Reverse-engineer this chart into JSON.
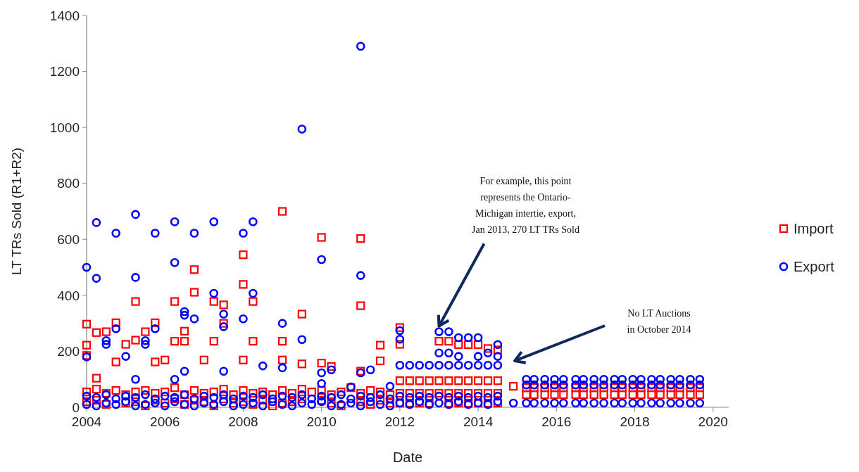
{
  "chart_data": {
    "type": "scatter",
    "xlabel": "Date",
    "ylabel": "LT TRs Sold (R1+R2)",
    "xlim": [
      2004,
      2020.4
    ],
    "xticks": [
      2004,
      2006,
      2008,
      2010,
      2012,
      2014,
      2016,
      2018,
      2020
    ],
    "ylim": [
      0,
      1400
    ],
    "yticks": [
      0,
      200,
      400,
      600,
      800,
      1000,
      1200,
      1400
    ],
    "legend": "right",
    "grid": false,
    "annotations": [
      {
        "text": "For example, this point represents the Ontario-Michigan intertie, export, Jan 2013, 270 LT TRs Sold",
        "x": 2013,
        "y": 270
      },
      "No LT Auctions in October 2014"
    ],
    "series": [
      {
        "name": "Import",
        "color": "#ff0000",
        "marker": "square",
        "x": [
          2004,
          2004,
          2004,
          2004,
          2004,
          2004.25,
          2004.25,
          2004.25,
          2004.25,
          2004.5,
          2004.5,
          2004.5,
          2004.75,
          2004.75,
          2004.75,
          2005,
          2005,
          2005,
          2005.25,
          2005.25,
          2005.25,
          2005.25,
          2005.5,
          2005.5,
          2005.5,
          2005.75,
          2005.75,
          2005.75,
          2005.75,
          2006,
          2006,
          2006,
          2006.25,
          2006.25,
          2006.25,
          2006.25,
          2006.5,
          2006.5,
          2006.5,
          2006.5,
          2006.75,
          2006.75,
          2006.75,
          2006.75,
          2007,
          2007,
          2007,
          2007.25,
          2007.25,
          2007.25,
          2007.25,
          2007.5,
          2007.5,
          2007.5,
          2007.5,
          2007.75,
          2007.75,
          2008,
          2008,
          2008,
          2008,
          2008,
          2008.25,
          2008.25,
          2008.25,
          2008.25,
          2008.5,
          2008.5,
          2008.75,
          2008.75,
          2009,
          2009,
          2009,
          2009,
          2009,
          2009.25,
          2009.25,
          2009.5,
          2009.5,
          2009.5,
          2009.5,
          2009.75,
          2010,
          2010,
          2010,
          2010,
          2010.25,
          2010.25,
          2010.25,
          2010.5,
          2010.5,
          2010.75,
          2011,
          2011,
          2011,
          2011,
          2011,
          2011.25,
          2011.25,
          2011.5,
          2011.5,
          2011.5,
          2011.5,
          2011.75,
          2011.75,
          2012,
          2012,
          2012,
          2012,
          2012,
          2012.25,
          2012.25,
          2012.25,
          2012.5,
          2012.5,
          2012.5,
          2012.75,
          2012.75,
          2012.75,
          2013,
          2013,
          2013,
          2013.25,
          2013.25,
          2013.25,
          2013.25,
          2013.5,
          2013.5,
          2013.5,
          2013.5,
          2013.75,
          2013.75,
          2013.75,
          2013.75,
          2014,
          2014,
          2014,
          2014,
          2014.25,
          2014.25,
          2014.25,
          2014.25,
          2014.5,
          2014.5,
          2014.5,
          2014.5,
          2014.9,
          2015.23,
          2015.23,
          2015.43,
          2015.43,
          2015.7,
          2015.7,
          2015.95,
          2015.95,
          2016.18,
          2016.18,
          2016.49,
          2016.49,
          2016.69,
          2016.69,
          2016.96,
          2016.96,
          2017.21,
          2017.21,
          2017.48,
          2017.48,
          2017.68,
          2017.68,
          2017.95,
          2017.95,
          2018.16,
          2018.16,
          2018.43,
          2018.43,
          2018.65,
          2018.65,
          2018.92,
          2018.92,
          2019.15,
          2019.15,
          2019.42,
          2019.42,
          2019.66,
          2019.66
        ],
        "values": [
          297,
          222,
          185,
          55,
          20,
          267,
          104,
          65,
          25,
          270,
          50,
          10,
          302,
          162,
          60,
          225,
          45,
          15,
          378,
          240,
          55,
          20,
          270,
          60,
          5,
          302,
          162,
          50,
          25,
          169,
          55,
          15,
          378,
          236,
          70,
          30,
          272,
          236,
          45,
          10,
          492,
          411,
          60,
          25,
          169,
          50,
          20,
          378,
          236,
          55,
          5,
          366,
          300,
          65,
          30,
          45,
          15,
          545,
          439,
          169,
          60,
          20,
          378,
          236,
          50,
          10,
          55,
          25,
          45,
          5,
          700,
          236,
          169,
          60,
          15,
          50,
          20,
          333,
          155,
          65,
          30,
          55,
          607,
          158,
          60,
          25,
          146,
          45,
          15,
          55,
          5,
          70,
          603,
          363,
          129,
          50,
          20,
          60,
          10,
          222,
          166,
          55,
          25,
          45,
          15,
          285,
          225,
          95,
          50,
          15,
          95,
          50,
          15,
          95,
          50,
          15,
          95,
          50,
          15,
          236,
          95,
          50,
          236,
          95,
          50,
          15,
          224,
          95,
          50,
          15,
          224,
          95,
          50,
          15,
          224,
          95,
          50,
          15,
          210,
          95,
          50,
          15,
          205,
          95,
          50,
          15,
          75,
          70,
          45,
          70,
          45,
          70,
          45,
          70,
          45,
          70,
          45,
          70,
          45,
          70,
          45,
          70,
          45,
          70,
          45,
          70,
          45,
          70,
          45,
          70,
          45,
          70,
          45,
          70,
          45,
          70,
          45,
          70,
          45,
          70,
          45,
          70,
          45,
          70,
          45
        ]
      },
      {
        "name": "Export",
        "color": "#0000ff",
        "marker": "circle",
        "x": [
          2004,
          2004,
          2004,
          2004,
          2004.25,
          2004.25,
          2004.25,
          2004.25,
          2004.5,
          2004.5,
          2004.5,
          2004.5,
          2004.75,
          2004.75,
          2004.75,
          2004.75,
          2005,
          2005,
          2005,
          2005.25,
          2005.25,
          2005.25,
          2005.25,
          2005.25,
          2005.5,
          2005.5,
          2005.5,
          2005.5,
          2005.75,
          2005.75,
          2005.75,
          2005.75,
          2006,
          2006,
          2006.25,
          2006.25,
          2006.25,
          2006.25,
          2006.25,
          2006.5,
          2006.5,
          2006.5,
          2006.5,
          2006.5,
          2006.75,
          2006.75,
          2006.75,
          2006.75,
          2007,
          2007,
          2007.25,
          2007.25,
          2007.25,
          2007.25,
          2007.5,
          2007.5,
          2007.5,
          2007.5,
          2007.5,
          2007.75,
          2007.75,
          2008,
          2008,
          2008,
          2008,
          2008.25,
          2008.25,
          2008.25,
          2008.25,
          2008.5,
          2008.5,
          2008.5,
          2008.75,
          2008.75,
          2009,
          2009,
          2009,
          2009,
          2009.25,
          2009.25,
          2009.5,
          2009.5,
          2009.5,
          2009.5,
          2009.75,
          2009.75,
          2010,
          2010,
          2010,
          2010,
          2010,
          2010.25,
          2010.25,
          2010.25,
          2010.5,
          2010.5,
          2010.75,
          2010.75,
          2010.75,
          2011,
          2011,
          2011,
          2011,
          2011,
          2011.25,
          2011.25,
          2011.25,
          2011.5,
          2011.5,
          2011.75,
          2011.75,
          2011.75,
          2012,
          2012,
          2012,
          2012,
          2012,
          2012.25,
          2012.25,
          2012.25,
          2012.5,
          2012.5,
          2012.5,
          2012.75,
          2012.75,
          2012.75,
          2013,
          2013,
          2013,
          2013,
          2013,
          2013.25,
          2013.25,
          2013.25,
          2013.25,
          2013.25,
          2013.5,
          2013.5,
          2013.5,
          2013.5,
          2013.5,
          2013.75,
          2013.75,
          2013.75,
          2013.75,
          2014,
          2014,
          2014,
          2014,
          2014,
          2014.25,
          2014.25,
          2014.25,
          2014.25,
          2014.5,
          2014.5,
          2014.5,
          2014.5,
          2014.5,
          2014.9,
          2015.23,
          2015.23,
          2015.23,
          2015.43,
          2015.43,
          2015.43,
          2015.7,
          2015.7,
          2015.7,
          2015.95,
          2015.95,
          2015.95,
          2016.18,
          2016.18,
          2016.18,
          2016.49,
          2016.49,
          2016.49,
          2016.69,
          2016.69,
          2016.69,
          2016.96,
          2016.96,
          2016.96,
          2017.21,
          2017.21,
          2017.21,
          2017.48,
          2017.48,
          2017.48,
          2017.68,
          2017.68,
          2017.68,
          2017.95,
          2017.95,
          2017.95,
          2018.16,
          2018.16,
          2018.16,
          2018.43,
          2018.43,
          2018.43,
          2018.65,
          2018.65,
          2018.65,
          2018.92,
          2018.92,
          2018.92,
          2019.15,
          2019.15,
          2019.15,
          2019.42,
          2019.42,
          2019.42,
          2019.66,
          2019.66,
          2019.66
        ],
        "values": [
          500,
          180,
          40,
          10,
          660,
          461,
          35,
          5,
          238,
          225,
          45,
          15,
          622,
          281,
          30,
          10,
          182,
          40,
          20,
          689,
          464,
          100,
          35,
          5,
          238,
          225,
          45,
          10,
          622,
          281,
          30,
          15,
          40,
          5,
          663,
          517,
          100,
          35,
          20,
          342,
          329,
          129,
          45,
          10,
          622,
          316,
          30,
          5,
          40,
          15,
          663,
          407,
          35,
          10,
          333,
          288,
          129,
          45,
          20,
          30,
          5,
          622,
          316,
          40,
          10,
          663,
          407,
          35,
          15,
          148,
          45,
          5,
          30,
          20,
          300,
          141,
          40,
          10,
          35,
          5,
          994,
          242,
          45,
          15,
          30,
          10,
          528,
          123,
          85,
          40,
          20,
          134,
          35,
          5,
          45,
          10,
          73,
          30,
          15,
          1290,
          471,
          123,
          40,
          5,
          134,
          35,
          20,
          45,
          10,
          75,
          30,
          5,
          274,
          243,
          150,
          40,
          15,
          150,
          35,
          10,
          150,
          40,
          20,
          150,
          35,
          10,
          270,
          194,
          150,
          40,
          15,
          270,
          194,
          150,
          35,
          10,
          249,
          182,
          150,
          40,
          20,
          249,
          150,
          35,
          10,
          249,
          182,
          150,
          40,
          15,
          194,
          150,
          35,
          10,
          224,
          182,
          150,
          40,
          20,
          15,
          100,
          80,
          15,
          100,
          80,
          15,
          100,
          80,
          15,
          100,
          80,
          15,
          100,
          80,
          15,
          100,
          80,
          15,
          100,
          80,
          15,
          100,
          80,
          15,
          100,
          80,
          15,
          100,
          80,
          15,
          100,
          80,
          15,
          100,
          80,
          15,
          100,
          80,
          15,
          100,
          80,
          15,
          100,
          80,
          15,
          100,
          80,
          15,
          100,
          80,
          15,
          100,
          80,
          15,
          100,
          80,
          15
        ]
      }
    ]
  }
}
